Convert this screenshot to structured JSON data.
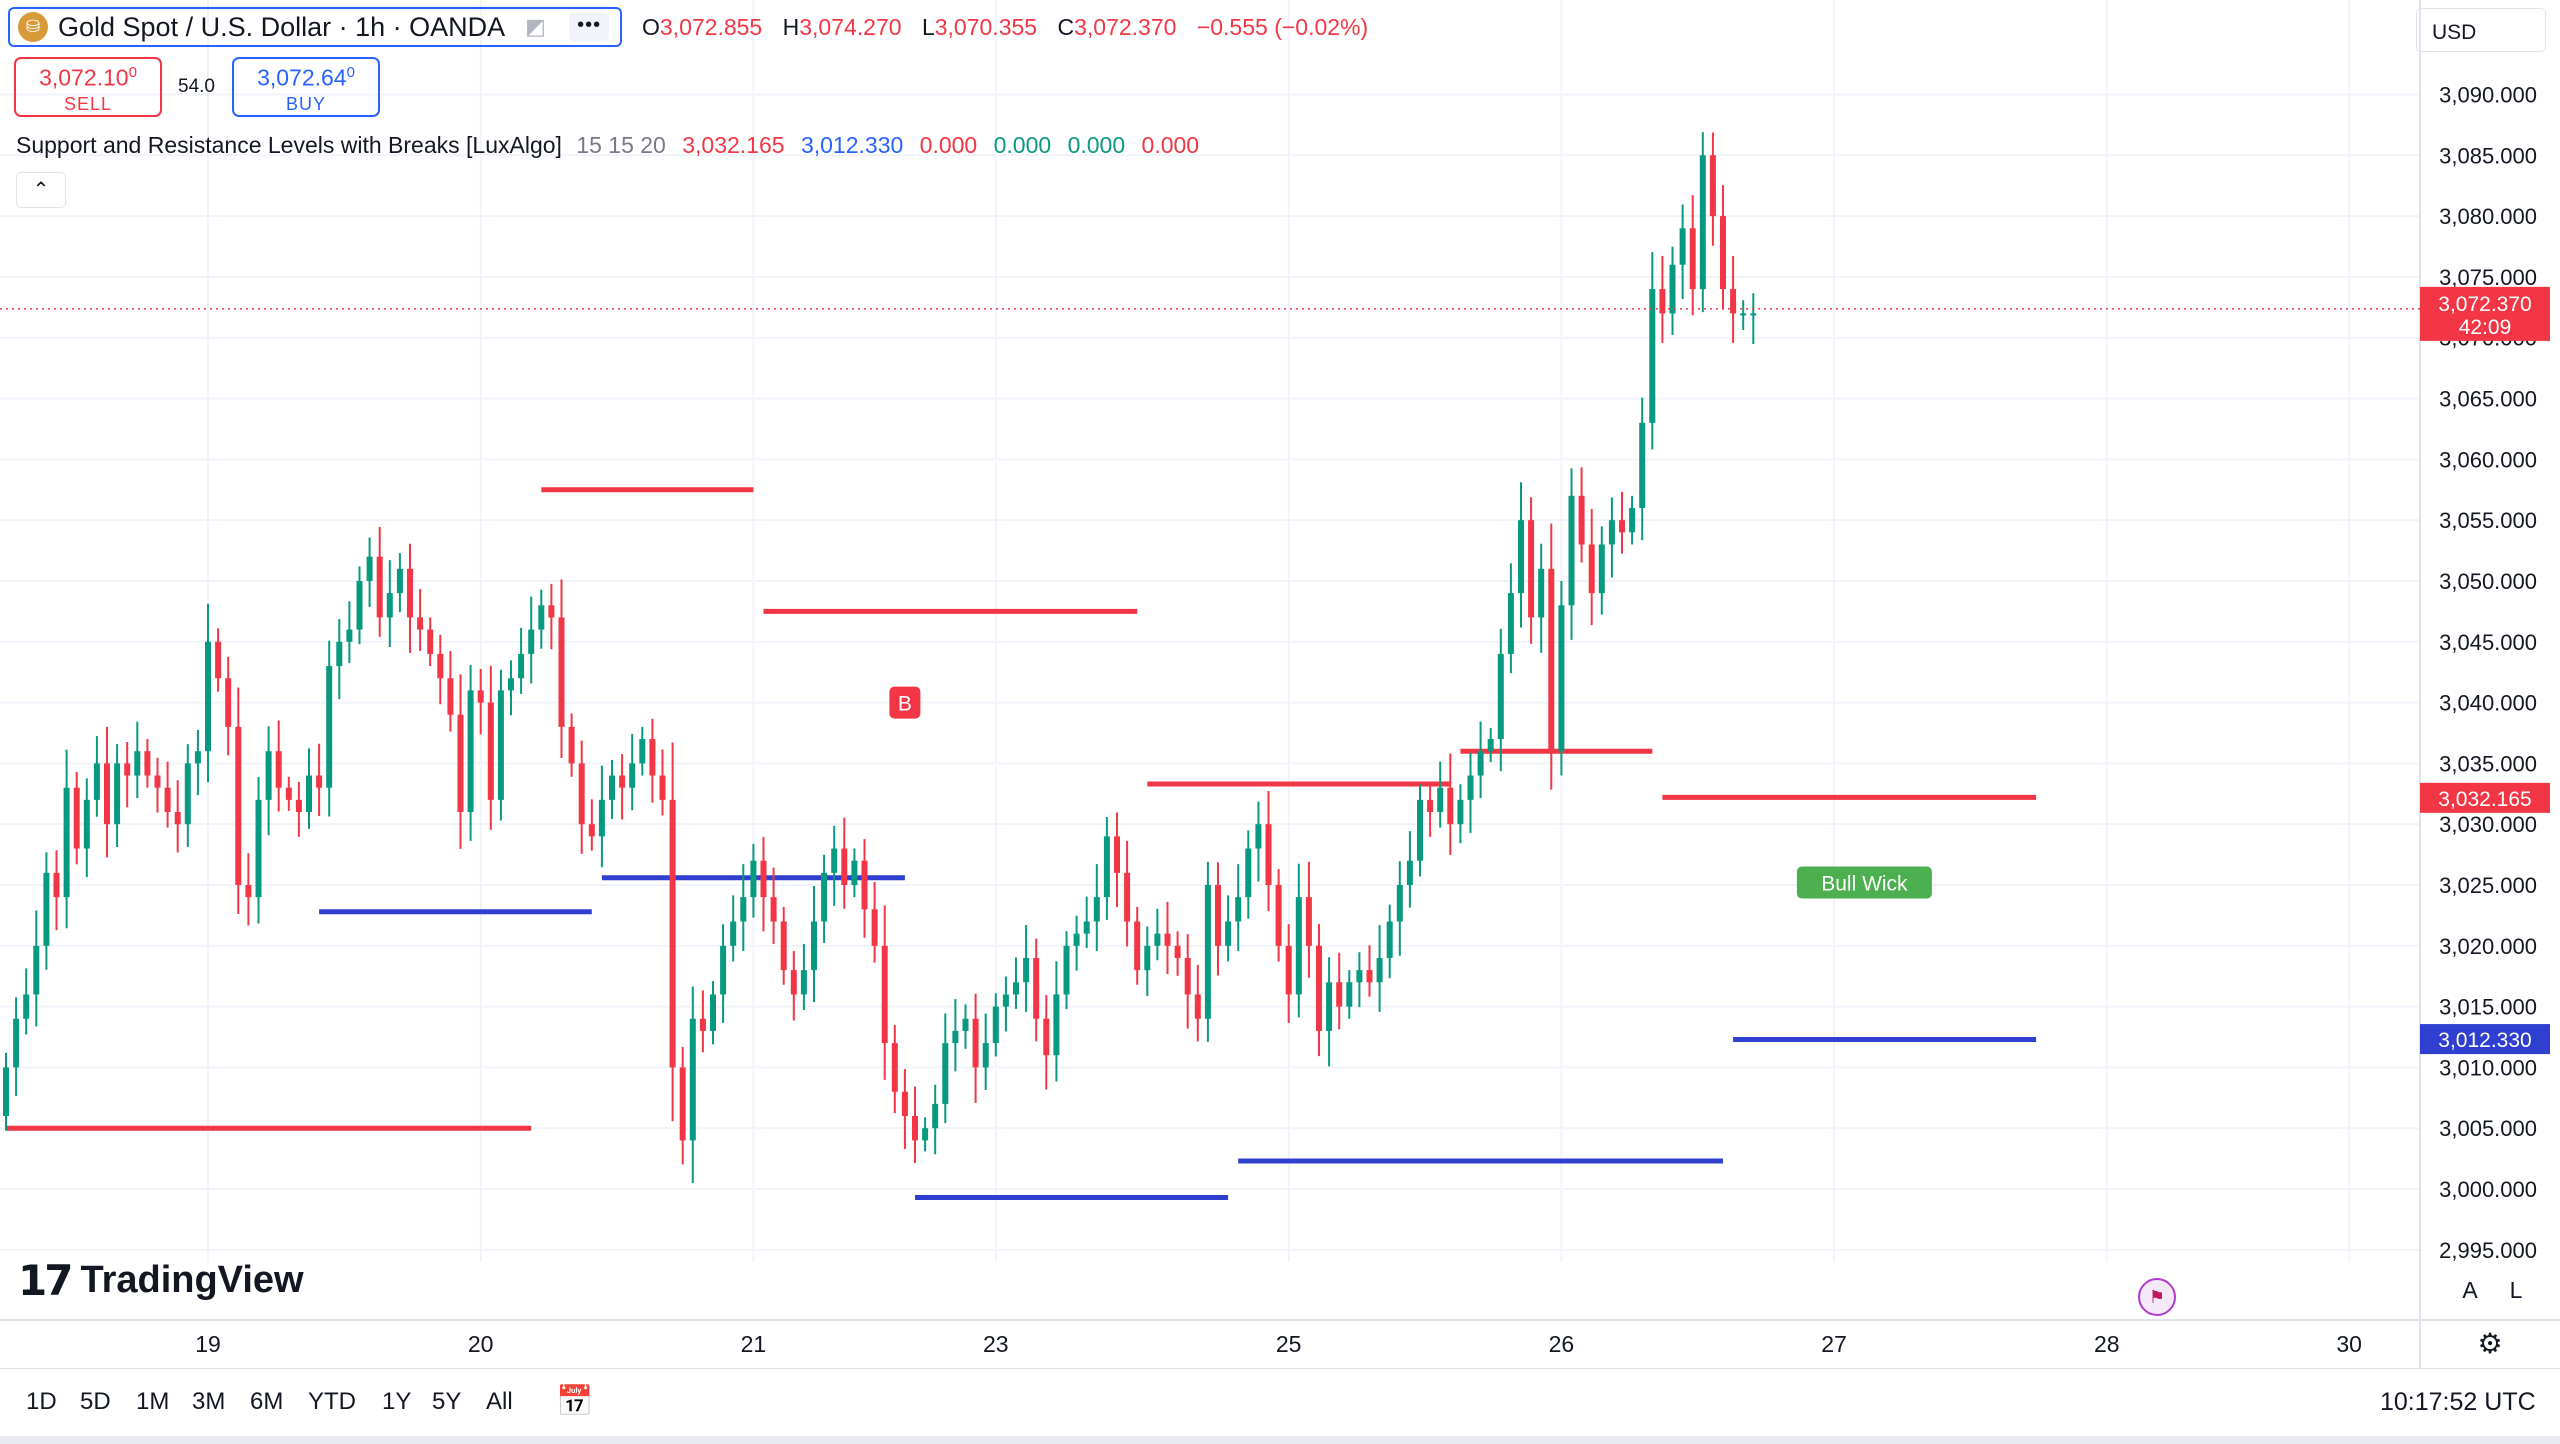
{
  "header": {
    "symbol_title": "Gold Spot / U.S. Dollar · 1h · OANDA",
    "logo_glyph": "⛁",
    "flag_glyph": "◩",
    "more_glyph": "•••",
    "ohlc": {
      "o_label": "O",
      "o_value": "3,072.855",
      "h_label": "H",
      "h_value": "3,074.270",
      "l_label": "L",
      "l_value": "3,070.355",
      "c_label": "C",
      "c_value": "3,072.370",
      "change": "−0.555 (−0.02%)"
    }
  },
  "trade": {
    "sell_price": "3,072.10",
    "sell_price_small": "0",
    "sell_label": "SELL",
    "spread": "54.0",
    "buy_price": "3,072.64",
    "buy_price_small": "0",
    "buy_label": "BUY"
  },
  "indicator": {
    "name": "Support and Resistance Levels with Breaks [LuxAlgo]",
    "params": "15 15 20",
    "v1": "3,032.165",
    "v2": "3,012.330",
    "v3": "0.000",
    "v4": "0.000",
    "v5": "0.000",
    "v6": "0.000",
    "collapse_glyph": "⌃"
  },
  "currency": {
    "label": "USD"
  },
  "branding": {
    "mark": "17",
    "text": "TradingView"
  },
  "scale_toggles": {
    "auto": "A",
    "log": "L"
  },
  "timeframes": [
    "1D",
    "5D",
    "1M",
    "3M",
    "6M",
    "YTD",
    "1Y",
    "5Y",
    "All"
  ],
  "clock": "10:17:52 UTC",
  "icons": {
    "calendar": "calendar-range-icon",
    "gear": "gear-icon",
    "flag": "us-flag-icon"
  },
  "colors": {
    "up": "#089981",
    "down": "#f23645",
    "resistance": "#f23645",
    "support": "#2f3fcf",
    "grid": "#f0f3fa",
    "label_green": "#4caf50"
  },
  "chart_data": {
    "type": "candlestick",
    "title": "Gold Spot / U.S. Dollar · 1h · OANDA",
    "ylim": [
      2994,
      3093
    ],
    "y_ticks": [
      3090,
      3085,
      3080,
      3075,
      3070,
      3065,
      3060,
      3055,
      3050,
      3045,
      3040,
      3035,
      3030,
      3025,
      3020,
      3015,
      3010,
      3005,
      3000,
      2995
    ],
    "y_tick_labels": [
      "3,090.000",
      "3,085.000",
      "3,080.000",
      "3,075.000",
      "3,070.000",
      "3,065.000",
      "3,060.000",
      "3,055.000",
      "3,050.000",
      "3,045.000",
      "3,040.000",
      "3,035.000",
      "3,030.000",
      "3,025.000",
      "3,020.000",
      "3,015.000",
      "3,010.000",
      "3,005.000",
      "3,000.000",
      "2,995.000"
    ],
    "x_ticks": [
      {
        "label": "19",
        "bar": 20
      },
      {
        "label": "20",
        "bar": 47
      },
      {
        "label": "21",
        "bar": 74
      },
      {
        "label": "23",
        "bar": 98
      },
      {
        "label": "25",
        "bar": 127
      },
      {
        "label": "26",
        "bar": 154
      },
      {
        "label": "27",
        "bar": 181
      },
      {
        "label": "28",
        "bar": 208
      },
      {
        "label": "30",
        "bar": 232
      }
    ],
    "closes": [
      3010,
      3014,
      3016,
      3020,
      3026,
      3024,
      3033,
      3028,
      3032,
      3035,
      3030,
      3035,
      3034,
      3036,
      3034,
      3033,
      3031,
      3030,
      3035,
      3036,
      3045,
      3042,
      3038,
      3025,
      3024,
      3032,
      3036,
      3033,
      3032,
      3031,
      3034,
      3033,
      3043,
      3045,
      3046,
      3050,
      3052,
      3047,
      3049,
      3051,
      3047,
      3046,
      3044,
      3042,
      3039,
      3031,
      3041,
      3040,
      3032,
      3041,
      3042,
      3044,
      3046,
      3048,
      3047,
      3038,
      3035,
      3030,
      3029,
      3032,
      3034,
      3033,
      3035,
      3037,
      3034,
      3032,
      3010,
      3004,
      3014,
      3013,
      3016,
      3020,
      3022,
      3024,
      3027,
      3024,
      3022,
      3018,
      3016,
      3018,
      3022,
      3026,
      3028,
      3025,
      3027,
      3023,
      3020,
      3012,
      3008,
      3006,
      3004,
      3005,
      3007,
      3012,
      3013,
      3014,
      3010,
      3012,
      3015,
      3016,
      3017,
      3019,
      3014,
      3011,
      3016,
      3020,
      3021,
      3022,
      3024,
      3029,
      3026,
      3022,
      3018,
      3020,
      3021,
      3020,
      3019,
      3016,
      3014,
      3025,
      3020,
      3022,
      3024,
      3028,
      3030,
      3025,
      3020,
      3016,
      3024,
      3020,
      3013,
      3017,
      3015,
      3017,
      3018,
      3017,
      3019,
      3022,
      3025,
      3027,
      3032,
      3031,
      3033,
      3030,
      3032,
      3034,
      3036,
      3037,
      3044,
      3049,
      3055,
      3047,
      3051,
      3036,
      3048,
      3057,
      3053,
      3049,
      3053,
      3055,
      3054,
      3056,
      3063,
      3074,
      3072,
      3076,
      3079,
      3074,
      3085,
      3080,
      3074,
      3072,
      3072,
      3072
    ],
    "support_levels": [
      {
        "value": 3005.0,
        "bar_start": 0,
        "bar_end": 52,
        "color": "resistance"
      },
      {
        "value": 3057.5,
        "bar_start": 53,
        "bar_end": 74,
        "color": "resistance"
      },
      {
        "value": 3047.5,
        "bar_start": 75,
        "bar_end": 112,
        "color": "resistance"
      },
      {
        "value": 3033.3,
        "bar_start": 113,
        "bar_end": 143,
        "color": "resistance"
      },
      {
        "value": 3036.0,
        "bar_start": 144,
        "bar_end": 163,
        "color": "resistance"
      },
      {
        "value": 3032.2,
        "bar_start": 164,
        "bar_end": 201,
        "color": "resistance"
      },
      {
        "value": 3022.8,
        "bar_start": 31,
        "bar_end": 58,
        "color": "support"
      },
      {
        "value": 3025.6,
        "bar_start": 59,
        "bar_end": 89,
        "color": "support"
      },
      {
        "value": 2999.3,
        "bar_start": 90,
        "bar_end": 121,
        "color": "support"
      },
      {
        "value": 3002.3,
        "bar_start": 122,
        "bar_end": 170,
        "color": "support"
      },
      {
        "value": 3012.3,
        "bar_start": 171,
        "bar_end": 201,
        "color": "support"
      }
    ],
    "markers": [
      {
        "type": "label",
        "text": "B",
        "bar": 89,
        "value": 3040,
        "color": "down"
      },
      {
        "type": "label",
        "text": "Bull Wick",
        "bar": 184,
        "value": 3025.2,
        "color": "label_green"
      }
    ],
    "current_price": {
      "value": 3072.37,
      "label": "3,072.370",
      "countdown": "42:09"
    },
    "level_badges": [
      {
        "value": 3032.165,
        "label": "3,032.165",
        "color": "resistance"
      },
      {
        "value": 3012.33,
        "label": "3,012.330",
        "color": "support"
      }
    ]
  }
}
